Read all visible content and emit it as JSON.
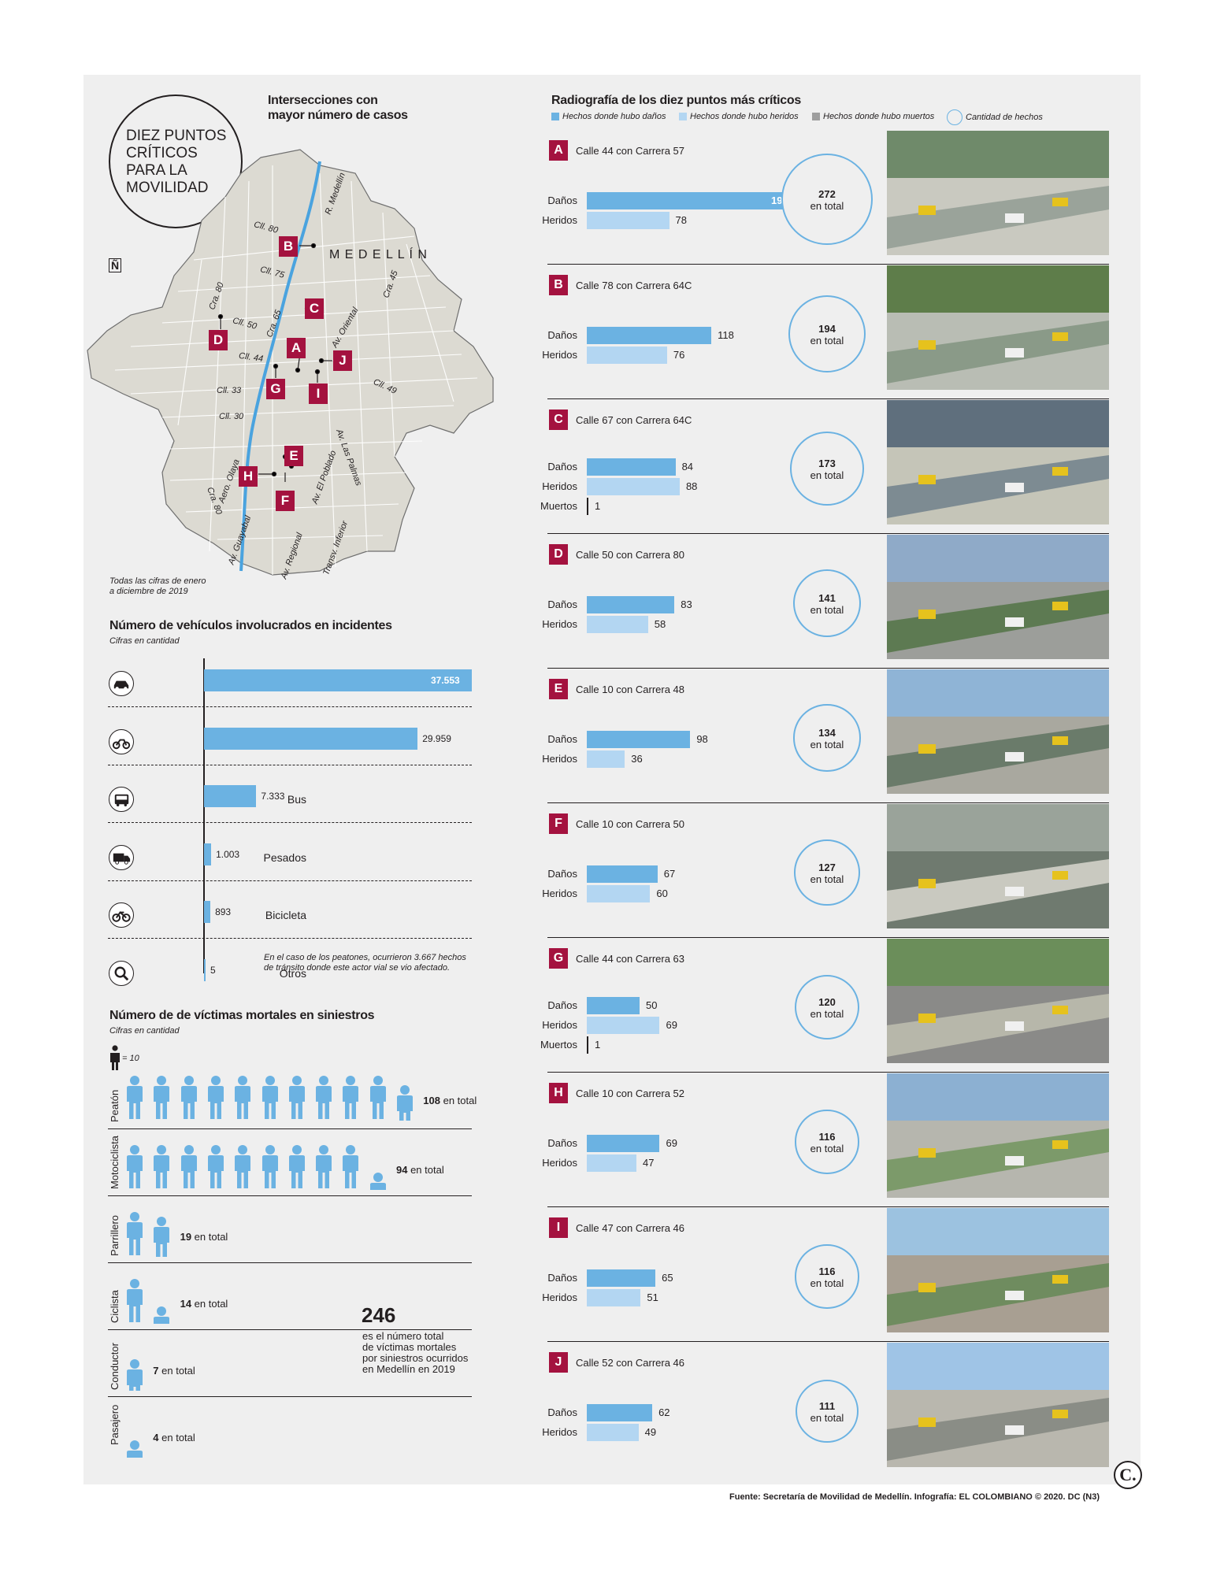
{
  "map": {
    "title_line1": "DIEZ PUNTOS",
    "title_line2": "CRÍTICOS",
    "title_line3": "PARA LA",
    "title_line4": "MOVILIDAD",
    "subtitle_line1": "Intersecciones con",
    "subtitle_line2": "mayor número de casos",
    "city": "M E D E L L Í N",
    "north": "Ñ",
    "streets": [
      "Cll. 80",
      "R. Medellín",
      "Cll. 75",
      "Cra. 45",
      "Cra. 80",
      "Cra. 65",
      "Cll. 50",
      "Av. Oriental",
      "Cll. 44",
      "Cll. 33",
      "Cll. 49",
      "Cll. 30",
      "Av. Las Palmas",
      "Aero. Olaya",
      "Av. El Poblado",
      "Cra. 80",
      "Av. Guayabal",
      "Av. Regional",
      "Transv. Inferior"
    ],
    "letters": [
      "A",
      "B",
      "C",
      "D",
      "E",
      "F",
      "G",
      "H",
      "I",
      "J"
    ],
    "note_line1": "Todas las cifras de enero",
    "note_line2": "a diciembre de 2019"
  },
  "vehicles": {
    "title": "Número de vehículos involucrados en incidentes",
    "subtitle": "Cifras en cantidad",
    "note_line1": "En el caso de los peatones, ocurrieron 3.667 hechos",
    "note_line2": "de tránsito donde este actor vial se vio afectado."
  },
  "victims": {
    "title": "Número de de víctimas mortales en siniestros",
    "subtitle": "Cifras en cantidad",
    "key": "= 10",
    "total_number": "246",
    "total_line1": "es el número total",
    "total_line2": "de víctimas mortales",
    "total_line3": "por siniestros ocurridos",
    "total_line4": "en Medellín en 2019",
    "total_suffix": "en total"
  },
  "points": {
    "title": "Radiografía de los diez puntos más críticos",
    "legend": [
      "Hechos donde hubo daños",
      "Hechos donde hubo heridos",
      "Hechos donde hubo muertos",
      "Cantidad de hechos"
    ],
    "labels": {
      "danos": "Daños",
      "heridos": "Heridos",
      "muertos": "Muertos",
      "en_total": "en total"
    }
  },
  "footer": "Fuente: Secretaría de Movilidad de Medellín. Infografía: EL COLOMBIANO © 2020. DC (N3)",
  "logo": "C.",
  "colors": {
    "danos": "#6bb2e2",
    "heridos": "#b3d6f2",
    "muertos": "#9e9e9e",
    "accent": "#a4123f"
  },
  "chart_data": [
    {
      "type": "bar",
      "title": "Número de vehículos involucrados en incidentes",
      "categories": [
        "Automóvil",
        "Motocicleta",
        "Bus",
        "Pesados",
        "Bicicleta",
        "Otros"
      ],
      "values": [
        37553,
        29959,
        7333,
        1003,
        893,
        5
      ],
      "value_labels": [
        "37.553",
        "29.959",
        "7.333",
        "1.003",
        "893",
        "5"
      ],
      "icons": [
        "car-icon",
        "motorcycle-icon",
        "bus-icon",
        "truck-icon",
        "bicycle-icon",
        "magnifier-icon"
      ]
    },
    {
      "type": "table",
      "title": "Número de de víctimas mortales en siniestros",
      "categories": [
        "Peatón",
        "Motociclista",
        "Parrillero",
        "Ciclista",
        "Conductor",
        "Pasajero"
      ],
      "values": [
        108,
        94,
        19,
        14,
        7,
        4
      ],
      "unit_per_icon": 10
    },
    {
      "type": "bar",
      "title": "Radiografía de los diez puntos más críticos",
      "categories": [
        "A",
        "B",
        "C",
        "D",
        "E",
        "F",
        "G",
        "H",
        "I",
        "J"
      ],
      "names": [
        "Calle 44 con Carrera 57",
        "Calle 78 con Carrera 64C",
        "Calle 67 con Carrera 64C",
        "Calle 50 con Carrera 80",
        "Calle 10 con Carrera 48",
        "Calle 10 con Carrera 50",
        "Calle 44 con Carrera 63",
        "Calle 10 con Carrera 52",
        "Calle 47 con Carrera 46",
        "Calle 52 con Carrera 46"
      ],
      "series": [
        {
          "name": "Hechos donde hubo daños",
          "values": [
            194,
            118,
            84,
            83,
            98,
            67,
            50,
            69,
            65,
            62
          ]
        },
        {
          "name": "Hechos donde hubo heridos",
          "values": [
            78,
            76,
            88,
            58,
            36,
            60,
            69,
            47,
            51,
            49
          ]
        },
        {
          "name": "Hechos donde hubo muertos",
          "values": [
            0,
            0,
            1,
            0,
            0,
            0,
            1,
            0,
            0,
            0
          ]
        },
        {
          "name": "Cantidad de hechos",
          "values": [
            272,
            194,
            173,
            141,
            134,
            127,
            120,
            116,
            116,
            111
          ]
        }
      ]
    }
  ]
}
